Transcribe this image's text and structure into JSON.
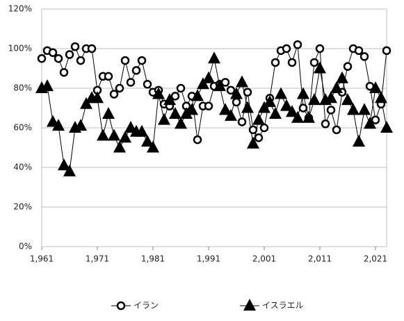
{
  "chart_data": {
    "type": "line",
    "x": [
      1961,
      1962,
      1963,
      1964,
      1965,
      1966,
      1967,
      1968,
      1969,
      1970,
      1971,
      1972,
      1973,
      1974,
      1975,
      1976,
      1977,
      1978,
      1979,
      1980,
      1981,
      1982,
      1983,
      1984,
      1985,
      1986,
      1987,
      1988,
      1989,
      1990,
      1991,
      1992,
      1993,
      1994,
      1995,
      1996,
      1997,
      1998,
      1999,
      2000,
      2001,
      2002,
      2003,
      2004,
      2005,
      2006,
      2007,
      2008,
      2009,
      2010,
      2011,
      2012,
      2013,
      2014,
      2015,
      2016,
      2017,
      2018,
      2019,
      2020,
      2021,
      2022,
      2023
    ],
    "series": [
      {
        "name": "イラン",
        "color": "#000000",
        "marker": "circle",
        "values": [
          95,
          99,
          98,
          95,
          88,
          97,
          101,
          94,
          100,
          100,
          79,
          86,
          86,
          77,
          80,
          94,
          83,
          89,
          94,
          82,
          78,
          79,
          72,
          71,
          76,
          80,
          71,
          76,
          54,
          71,
          71,
          81,
          82,
          83,
          79,
          73,
          63,
          78,
          59,
          55,
          60,
          75,
          93,
          99,
          100,
          93,
          102,
          70,
          65,
          93,
          100,
          62,
          69,
          59,
          78,
          91,
          100,
          99,
          96,
          81,
          64,
          72,
          99
        ]
      },
      {
        "name": "イスラエル",
        "color": "#000000",
        "marker": "triangle",
        "values": [
          80,
          81,
          63,
          61,
          41,
          38,
          60,
          61,
          72,
          75,
          75,
          56,
          67,
          56,
          50,
          55,
          60,
          58,
          58,
          53,
          50,
          77,
          64,
          74,
          67,
          62,
          67,
          69,
          76,
          82,
          85,
          95,
          81,
          69,
          66,
          77,
          83,
          70,
          52,
          64,
          70,
          73,
          67,
          77,
          71,
          68,
          65,
          77,
          65,
          74,
          90,
          74,
          75,
          80,
          85,
          74,
          69,
          53,
          69,
          62,
          80,
          75,
          60
        ]
      }
    ],
    "xlim": [
      1961,
      2023
    ],
    "xticks": [
      {
        "value": 1961,
        "label": "1,961"
      },
      {
        "value": 1971,
        "label": "1,971"
      },
      {
        "value": 1981,
        "label": "1,981"
      },
      {
        "value": 1991,
        "label": "1,991"
      },
      {
        "value": 2001,
        "label": "2,001"
      },
      {
        "value": 2011,
        "label": "2,011"
      },
      {
        "value": 2021,
        "label": "2,021"
      }
    ],
    "ylim": [
      0,
      120
    ],
    "yticks": [
      {
        "value": 0,
        "label": "0%"
      },
      {
        "value": 20,
        "label": "20%"
      },
      {
        "value": 40,
        "label": "40%"
      },
      {
        "value": 60,
        "label": "60%"
      },
      {
        "value": 80,
        "label": "80%"
      },
      {
        "value": 100,
        "label": "100%"
      },
      {
        "value": 120,
        "label": "120%"
      }
    ],
    "grid": true,
    "legend": "bottom"
  }
}
